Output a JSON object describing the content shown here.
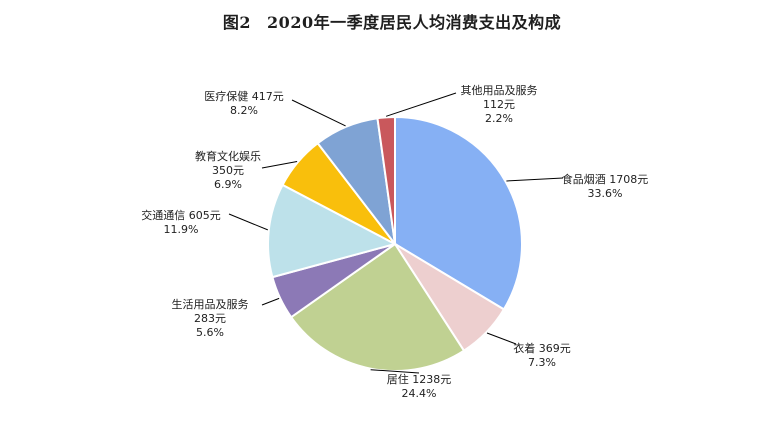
{
  "chart_data": {
    "type": "pie",
    "figure_no": "图2",
    "title": "2020年一季度居民人均消费支出及构成",
    "unit": "元",
    "slices": [
      {
        "name": "食品烟酒",
        "value": 1708,
        "value_label": "1708元",
        "percent": 33.6,
        "percent_label": "33.6%",
        "color": "#86B0F4"
      },
      {
        "name": "衣着",
        "value": 369,
        "value_label": "369元",
        "percent": 7.3,
        "percent_label": "7.3%",
        "color": "#EDCFCF"
      },
      {
        "name": "居住",
        "value": 1238,
        "value_label": "1238元",
        "percent": 24.4,
        "percent_label": "24.4%",
        "color": "#C0D192"
      },
      {
        "name": "生活用品及服务",
        "value": 283,
        "value_label": "283元",
        "percent": 5.6,
        "percent_label": "5.6%",
        "color": "#8C79B6"
      },
      {
        "name": "交通通信",
        "value": 605,
        "value_label": "605元",
        "percent": 11.9,
        "percent_label": "11.9%",
        "color": "#BDE1EA"
      },
      {
        "name": "教育文化娱乐",
        "value": 350,
        "value_label": "350元",
        "percent": 6.9,
        "percent_label": "6.9%",
        "color": "#F9BF0C"
      },
      {
        "name": "医疗保健",
        "value": 417,
        "value_label": "417元",
        "percent": 8.2,
        "percent_label": "8.2%",
        "color": "#7FA3D4"
      },
      {
        "name": "其他用品及服务",
        "value": 112,
        "value_label": "112元",
        "percent": 2.2,
        "percent_label": "2.2%",
        "color": "#C9585C"
      }
    ]
  }
}
